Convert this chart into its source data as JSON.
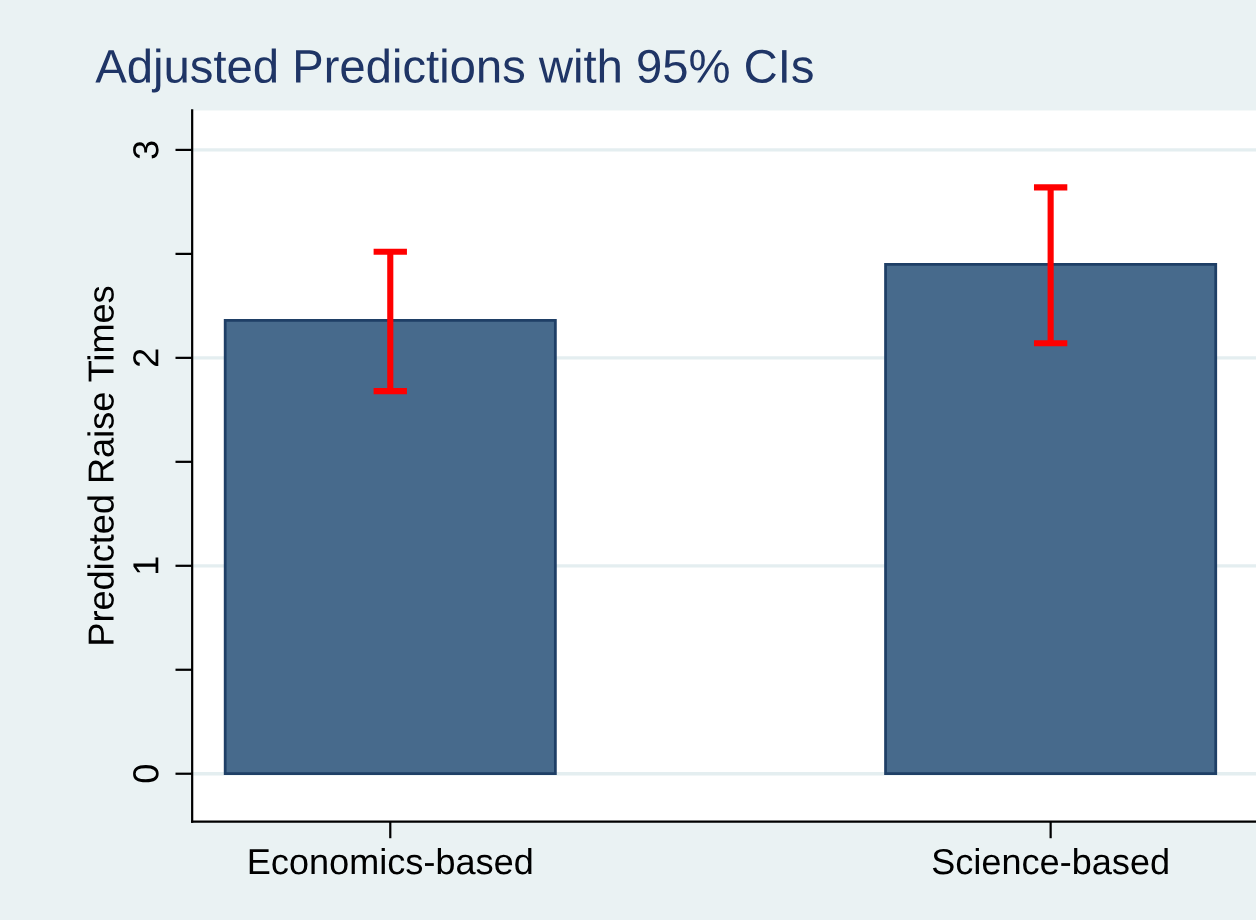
{
  "chart_data": {
    "type": "bar",
    "title": "Adjusted Predictions with 95% CIs",
    "ylabel": "Predicted Raise Times",
    "categories": [
      "Economics-based",
      "Science-based"
    ],
    "values": [
      2.18,
      2.45
    ],
    "color": "#476a8c",
    "errors": [
      [
        1.84,
        2.51
      ],
      [
        2.07,
        2.82
      ]
    ],
    "ylim": [
      -0.23,
      3.19
    ],
    "yticks": [
      0,
      {
        "value": 0.5,
        "label": null
      },
      1,
      {
        "value": 1.5,
        "label": null
      },
      2,
      {
        "value": 2.5,
        "label": null
      },
      3
    ],
    "grid": "y",
    "legend": false
  }
}
